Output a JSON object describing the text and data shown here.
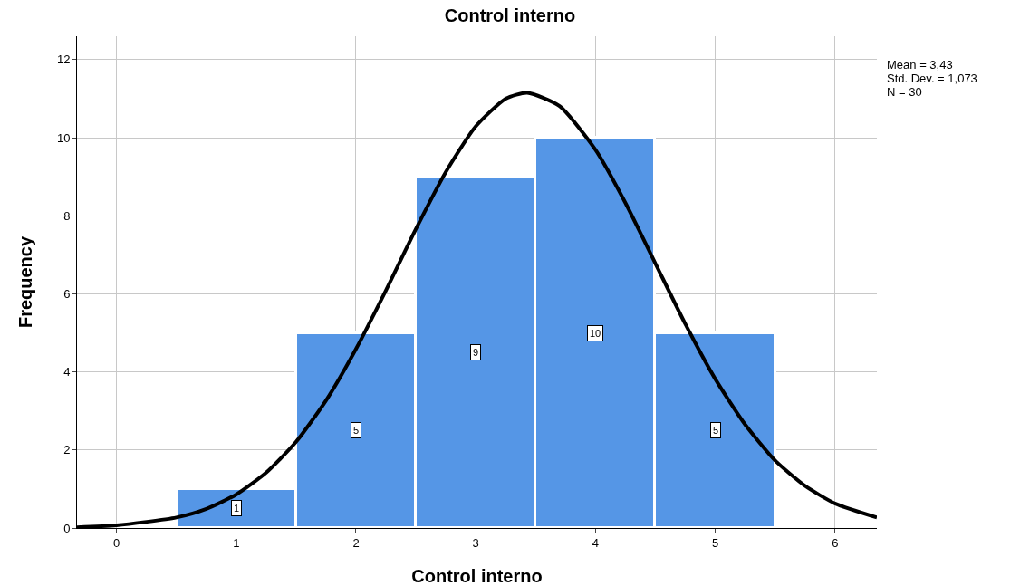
{
  "chart_data": {
    "type": "histogram",
    "title": "Control interno",
    "xlabel": "Control interno",
    "ylabel": "Frequency",
    "bins": [
      0.5,
      1.5,
      2.5,
      3.5,
      4.5,
      5.5
    ],
    "series": [
      {
        "color": "#5596e6",
        "values": [
          1,
          5,
          9,
          10,
          5
        ],
        "value_labels": [
          "1",
          "5",
          "9",
          "10",
          "5"
        ]
      },
      {
        "type": "line",
        "color": "#000000",
        "x": [
          -0.33,
          0,
          0.5,
          0.75,
          1,
          1.25,
          1.5,
          1.75,
          2,
          2.25,
          2.5,
          2.75,
          3,
          3.25,
          3.43,
          3.7,
          4,
          4.25,
          4.5,
          4.75,
          5,
          5.25,
          5.5,
          5.75,
          6,
          6.35
        ],
        "values": [
          0.02,
          0.07,
          0.27,
          0.49,
          0.86,
          1.42,
          2.21,
          3.27,
          4.59,
          6.09,
          7.66,
          9.12,
          10.29,
          11.0,
          11.15,
          10.81,
          9.69,
          8.33,
          6.78,
          5.23,
          3.82,
          2.65,
          1.73,
          1.08,
          0.63,
          0.27
        ]
      }
    ],
    "xlim": [
      -0.33,
      6.35
    ],
    "xticks": [
      0,
      1,
      2,
      3,
      4,
      5,
      6
    ],
    "ylim": [
      0,
      12.6
    ],
    "yticks": [
      0,
      2,
      4,
      6,
      8,
      10,
      12
    ],
    "grid": true,
    "marker": "none",
    "line_style": "solid",
    "annotations": [
      "Mean = 3,43",
      "Std. Dev. = 1,073",
      "N = 30"
    ]
  }
}
